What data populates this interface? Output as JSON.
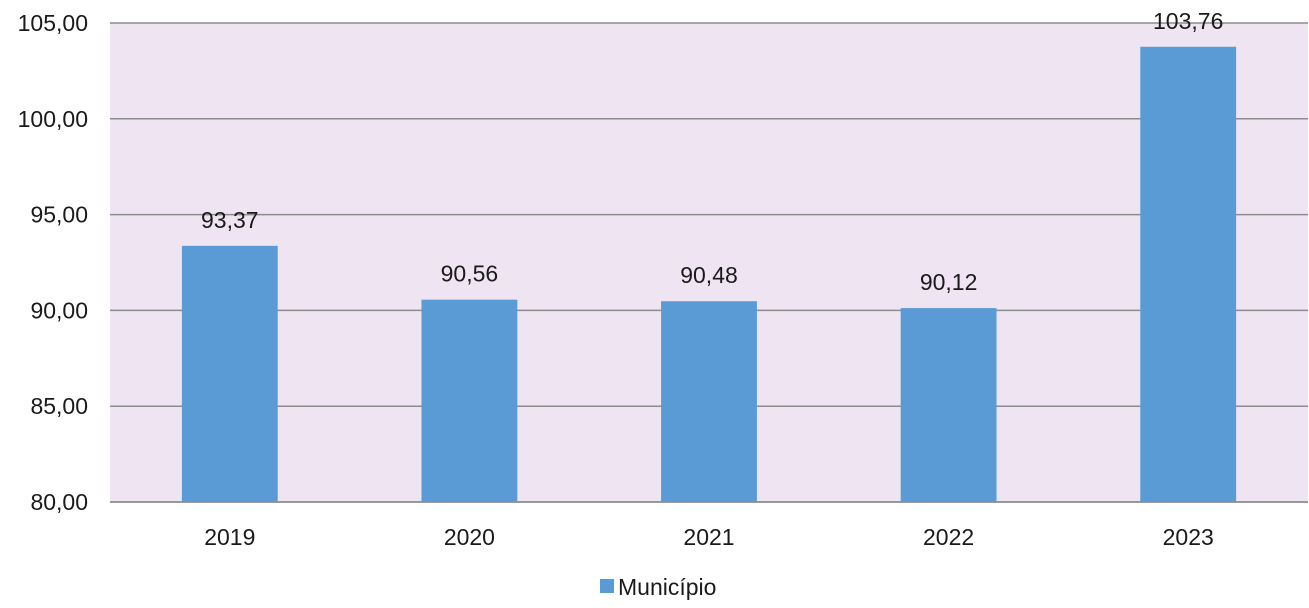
{
  "chart_data": {
    "type": "bar",
    "categories": [
      "2019",
      "2020",
      "2021",
      "2022",
      "2023"
    ],
    "series": [
      {
        "name": "Município",
        "values": [
          93.37,
          90.56,
          90.48,
          90.12,
          103.76
        ]
      }
    ],
    "data_labels": [
      "93,37",
      "90,56",
      "90,48",
      "90,12",
      "103,76"
    ],
    "ylim": [
      80,
      105
    ],
    "yticks": [
      80,
      85,
      90,
      95,
      100,
      105
    ],
    "ytick_labels": [
      "80,00",
      "85,00",
      "90,00",
      "95,00",
      "100,00",
      "105,00"
    ],
    "grid": true,
    "legend_position": "bottom",
    "colors": {
      "bar": "#5b9bd5",
      "plot_background": "#efe4f1",
      "gridline": "#8c8c8c"
    }
  }
}
